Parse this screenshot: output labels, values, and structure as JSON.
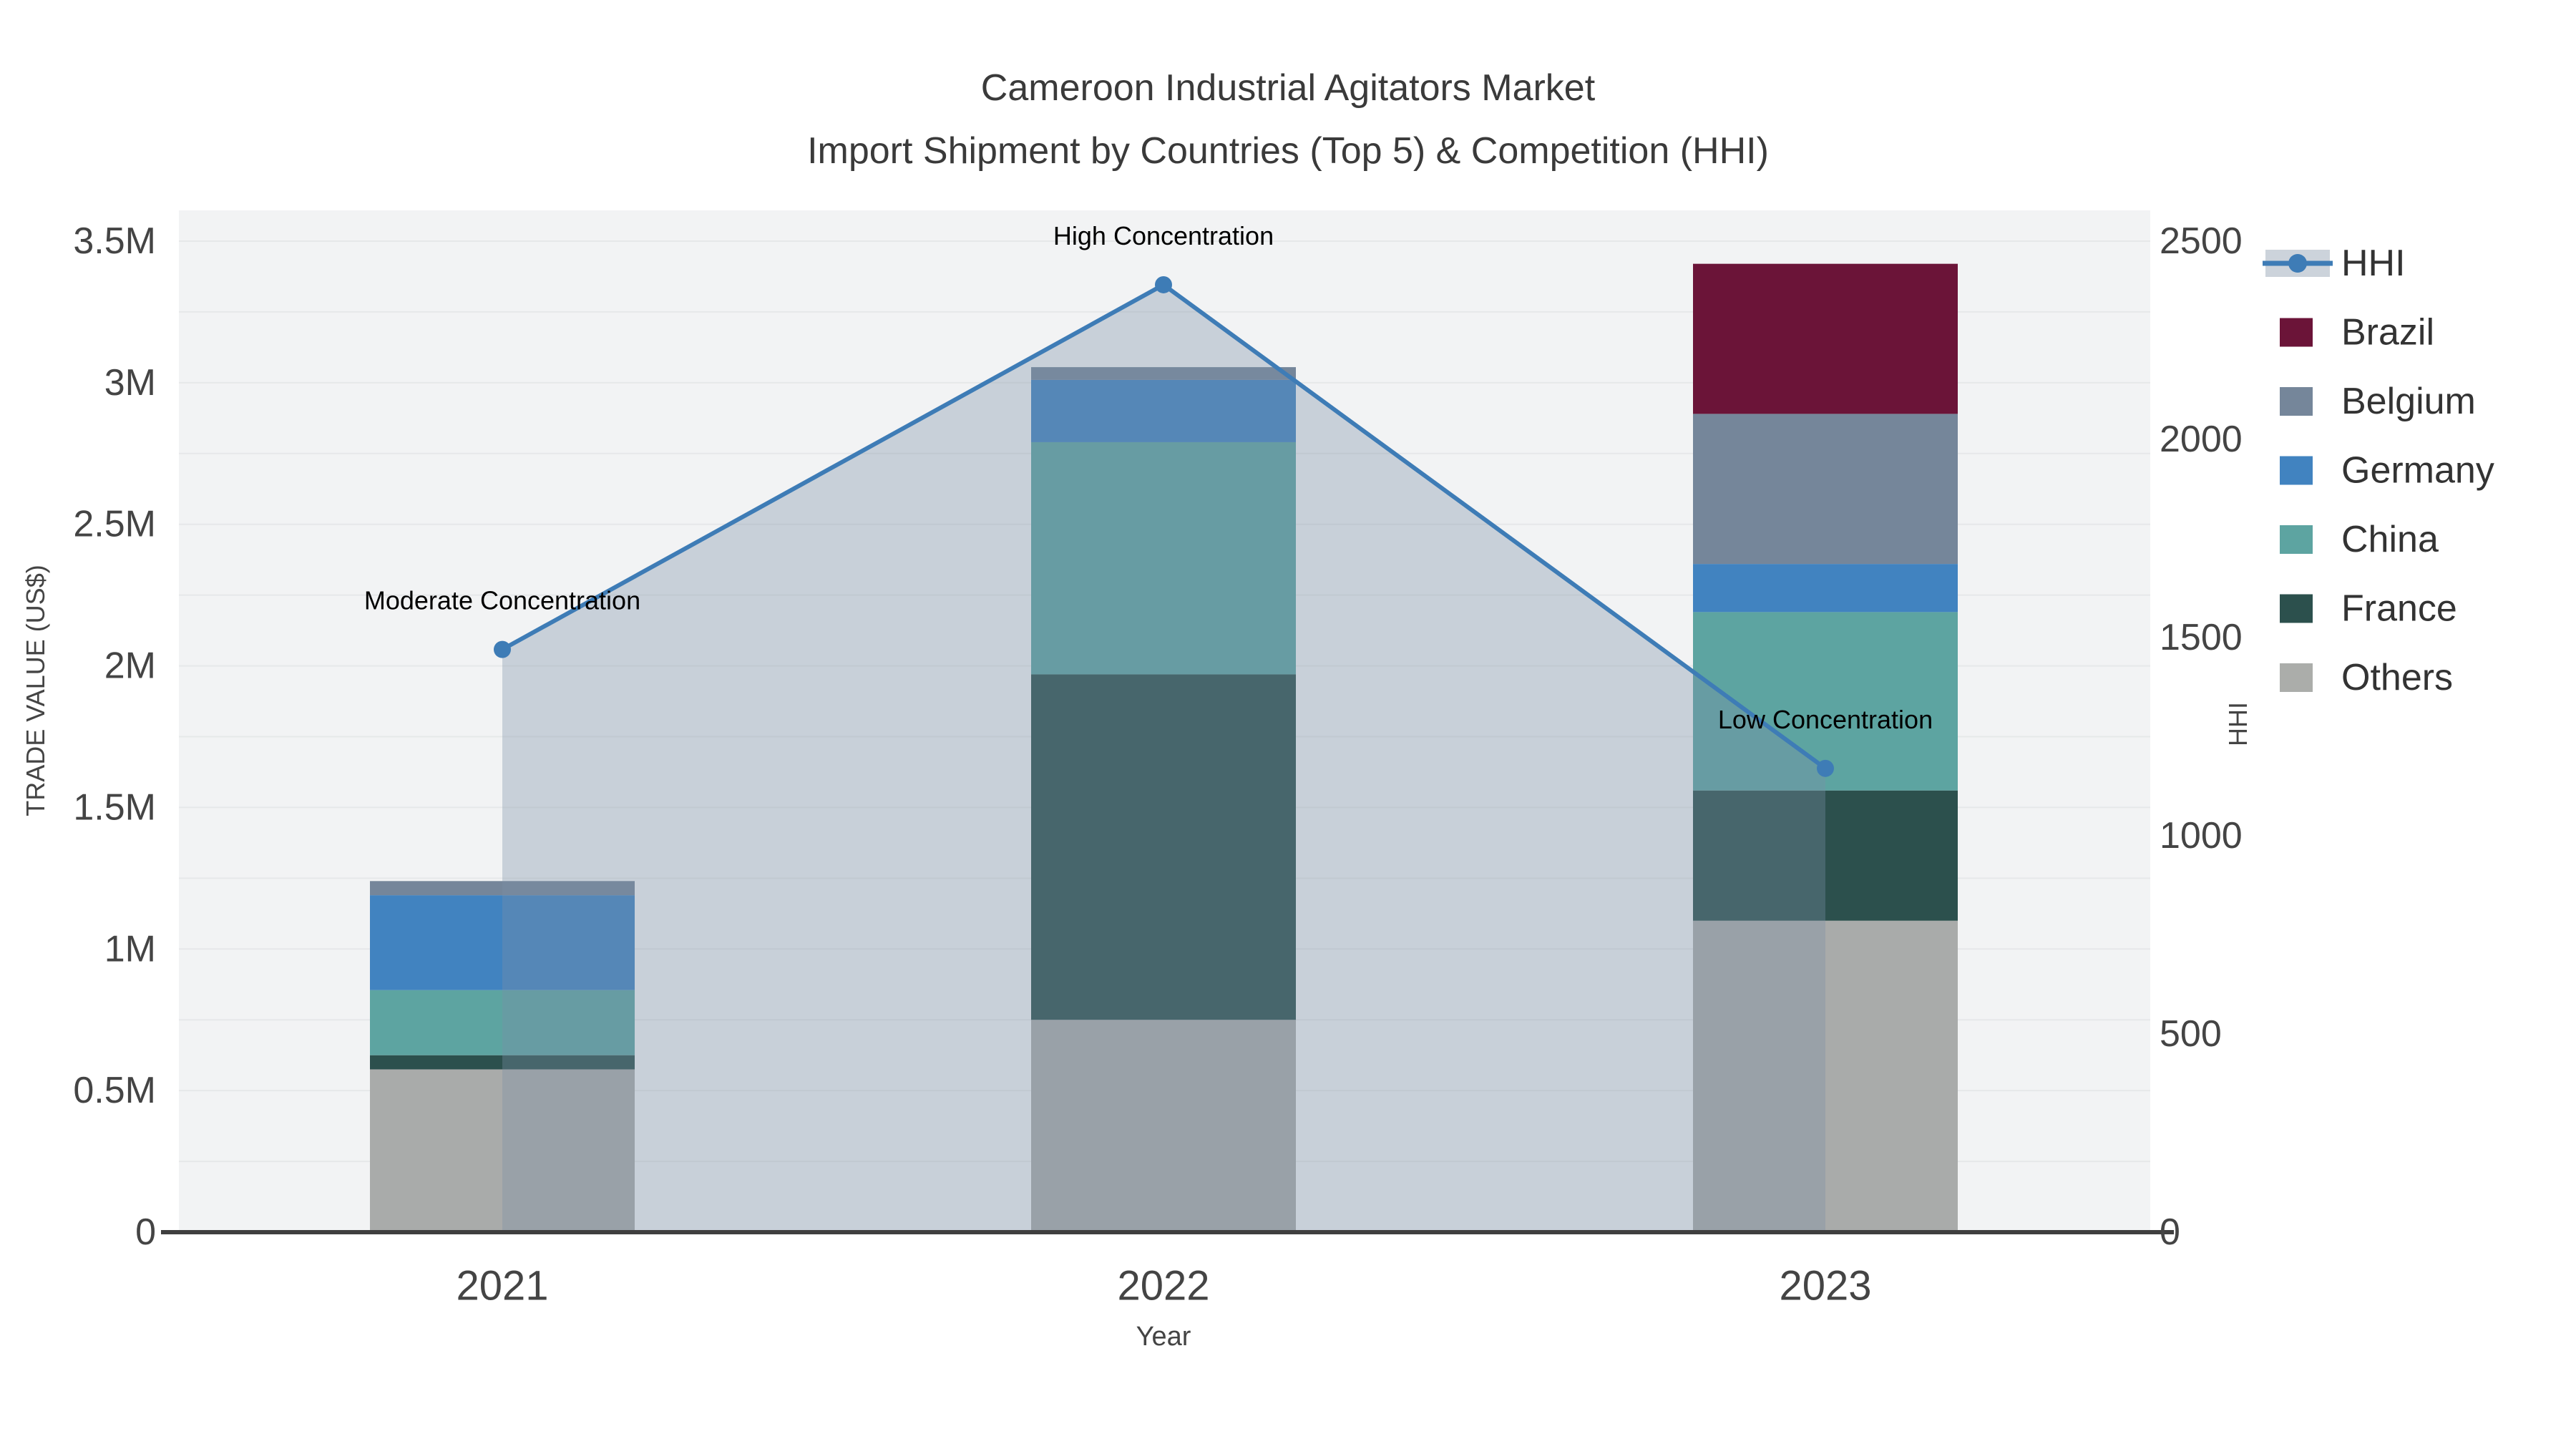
{
  "title": {
    "line1": "Cameroon Industrial Agitators Market",
    "line2": "Import Shipment by Countries (Top 5) & Competition (HHI)"
  },
  "axes": {
    "x_title": "Year",
    "y1_title": "TRADE VALUE (US$)",
    "y2_title": "HHI",
    "y1_ticks": [
      {
        "value": 0,
        "label": "0"
      },
      {
        "value": 500000,
        "label": "0.5M"
      },
      {
        "value": 1000000,
        "label": "1M"
      },
      {
        "value": 1500000,
        "label": "1.5M"
      },
      {
        "value": 2000000,
        "label": "2M"
      },
      {
        "value": 2500000,
        "label": "2.5M"
      },
      {
        "value": 3000000,
        "label": "3M"
      },
      {
        "value": 3500000,
        "label": "3.5M"
      }
    ],
    "y2_ticks": [
      {
        "value": 0,
        "label": "0"
      },
      {
        "value": 500,
        "label": "500"
      },
      {
        "value": 1000,
        "label": "1000"
      },
      {
        "value": 1500,
        "label": "1500"
      },
      {
        "value": 2000,
        "label": "2000"
      },
      {
        "value": 2500,
        "label": "2500"
      }
    ]
  },
  "chart_data": {
    "type": "combo-stacked-bar-line",
    "categories": [
      "2021",
      "2022",
      "2023"
    ],
    "y1_range": [
      0,
      3500000
    ],
    "y2_range": [
      0,
      2500
    ],
    "bar_series": [
      {
        "name": "Others",
        "color": "#a9abaa",
        "values": [
          575000,
          750000,
          1100000
        ]
      },
      {
        "name": "France",
        "color": "#2c504d",
        "values": [
          50000,
          1220000,
          460000
        ]
      },
      {
        "name": "China",
        "color": "#5da4a1",
        "values": [
          230000,
          820000,
          630000
        ]
      },
      {
        "name": "Germany",
        "color": "#4183c0",
        "values": [
          335000,
          220000,
          170000
        ]
      },
      {
        "name": "Belgium",
        "color": "#75869a",
        "values": [
          50000,
          45000,
          530000
        ]
      },
      {
        "name": "Brazil",
        "color": "#6b1438",
        "values": [
          0,
          0,
          530000
        ]
      }
    ],
    "line_series": {
      "name": "HHI",
      "axis": "y2",
      "color": "#3e7cb6",
      "fill_color": "rgba(123,143,165,0.35)",
      "values": [
        1470,
        2390,
        1170
      ],
      "annotations": [
        "Moderate Concentration",
        "High Concentration",
        "Low Concentration"
      ]
    }
  },
  "legend": {
    "items": [
      {
        "label": "HHI",
        "type": "line",
        "color": "#3e7cb6",
        "fill": "#ccd3db"
      },
      {
        "label": "Brazil",
        "type": "bar",
        "color": "#6b1438"
      },
      {
        "label": "Belgium",
        "type": "bar",
        "color": "#75869a"
      },
      {
        "label": "Germany",
        "type": "bar",
        "color": "#4183c0"
      },
      {
        "label": "China",
        "type": "bar",
        "color": "#5da4a1"
      },
      {
        "label": "France",
        "type": "bar",
        "color": "#2c504d"
      },
      {
        "label": "Others",
        "type": "bar",
        "color": "#abadaa"
      }
    ]
  },
  "colors": {
    "plot_bg": "#f2f3f4",
    "grid": "#e6e8e9",
    "axis_line": "#3f3f3f",
    "tick_text": "#444444",
    "title_text": "#3a3a3a",
    "annotation_text": "#000000",
    "legend_text": "#333333"
  }
}
